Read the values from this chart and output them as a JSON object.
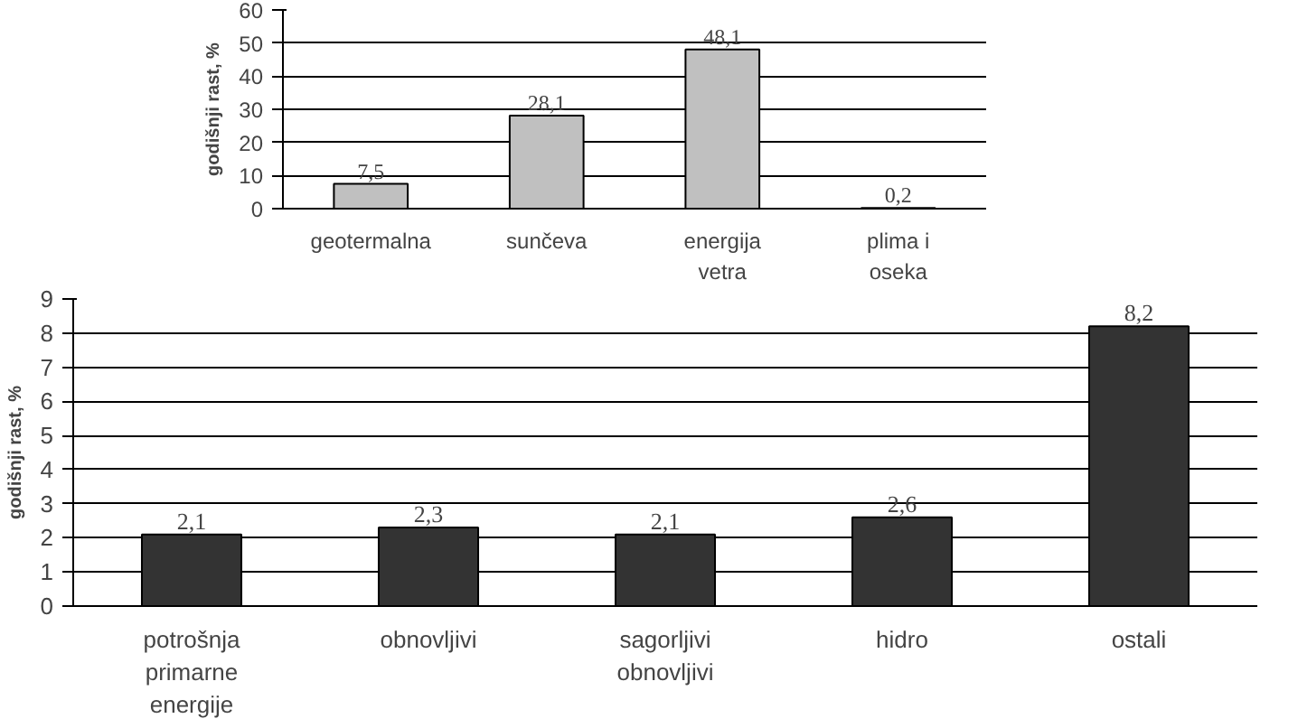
{
  "chart_data": [
    {
      "type": "bar",
      "ylabel": "godišnji rast, %",
      "categories": [
        "geotermalna",
        "sunčeva",
        "energija vetra",
        "plima i oseka"
      ],
      "values": [
        7.5,
        28.1,
        48.1,
        0.2
      ],
      "value_labels": [
        "7,5",
        "28,1",
        "48,1",
        "0,2"
      ],
      "color": "#c0c0c0",
      "ylim": [
        0,
        60
      ],
      "yticks": [
        0,
        10,
        20,
        30,
        40,
        50,
        60
      ],
      "grid": "y"
    },
    {
      "type": "bar",
      "ylabel": "godišnji rast, %",
      "categories": [
        "potrošnja primarne energije",
        "obnovljivi",
        "sagorljivi obnovljivi",
        "hidro",
        "ostali"
      ],
      "values": [
        2.1,
        2.3,
        2.1,
        2.6,
        8.2
      ],
      "value_labels": [
        "2,1",
        "2,3",
        "2,1",
        "2,6",
        "8,2"
      ],
      "color": "#333333",
      "ylim": [
        0,
        9
      ],
      "yticks": [
        0,
        1,
        2,
        3,
        4,
        5,
        6,
        7,
        8,
        9
      ],
      "grid": "y"
    }
  ]
}
